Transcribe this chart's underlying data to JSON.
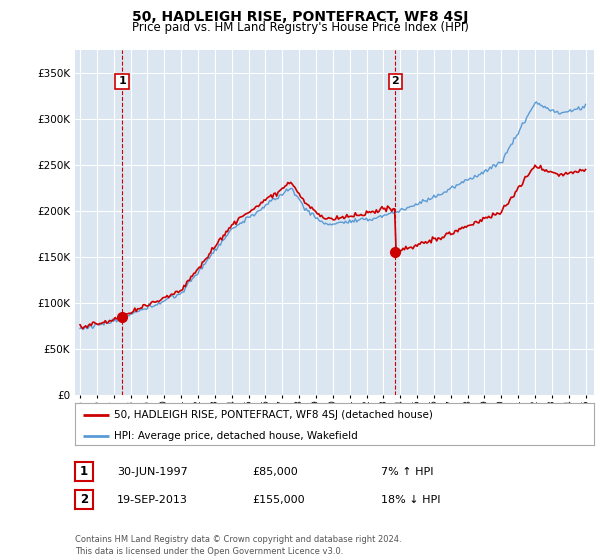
{
  "title": "50, HADLEIGH RISE, PONTEFRACT, WF8 4SJ",
  "subtitle": "Price paid vs. HM Land Registry's House Price Index (HPI)",
  "legend_line1": "50, HADLEIGH RISE, PONTEFRACT, WF8 4SJ (detached house)",
  "legend_line2": "HPI: Average price, detached house, Wakefield",
  "annotation1_date": "30-JUN-1997",
  "annotation1_price": "£85,000",
  "annotation1_hpi": "7% ↑ HPI",
  "annotation2_date": "19-SEP-2013",
  "annotation2_price": "£155,000",
  "annotation2_hpi": "18% ↓ HPI",
  "footer": "Contains HM Land Registry data © Crown copyright and database right 2024.\nThis data is licensed under the Open Government Licence v3.0.",
  "hpi_color": "#5b9bd5",
  "price_color": "#cc0000",
  "background_color": "#ffffff",
  "chart_bg_color": "#dce6f1",
  "grid_color": "#ffffff",
  "vline_color": "#cc0000",
  "ylim": [
    0,
    375000
  ],
  "yticks": [
    0,
    50000,
    100000,
    150000,
    200000,
    250000,
    300000,
    350000
  ],
  "xlim_start": 1994.7,
  "xlim_end": 2025.5,
  "sale1_x": 1997.495,
  "sale1_y": 85000,
  "sale2_x": 2013.72,
  "sale2_y": 155000
}
